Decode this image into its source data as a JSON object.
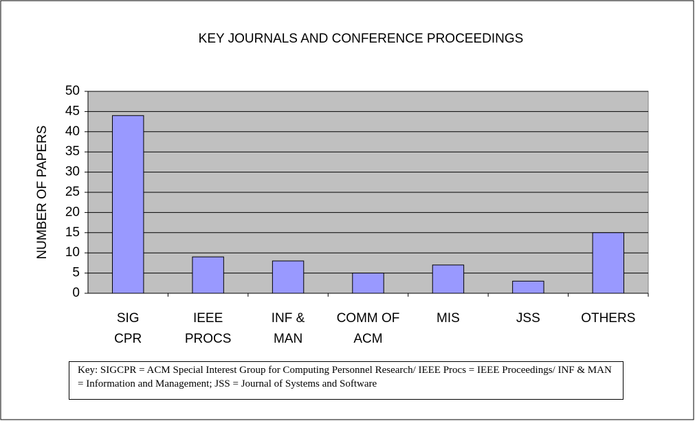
{
  "chart_data": {
    "type": "bar",
    "title": "KEY JOURNALS AND CONFERENCE PROCEEDINGS",
    "y_label": "NUMBER OF PAPERS",
    "categories": [
      "SIG\nCPR",
      "IEEE\nPROCS",
      "INF &\nMAN",
      "COMM OF\nACM",
      "MIS",
      "JSS",
      "OTHERS"
    ],
    "values": [
      44,
      9,
      8,
      5,
      7,
      3,
      15
    ],
    "color": "#9999ff",
    "ylim": [
      0,
      50
    ],
    "yticks": [
      0,
      5,
      10,
      15,
      20,
      25,
      30,
      35,
      40,
      45,
      50
    ],
    "grid": true,
    "note": "Key: SIGCPR = ACM Special Interest Group for Computing Personnel Research/ IEEE Procs = IEEE Proceedings/ INF & MAN = Information and Management; JSS = Journal of Systems and Software"
  }
}
